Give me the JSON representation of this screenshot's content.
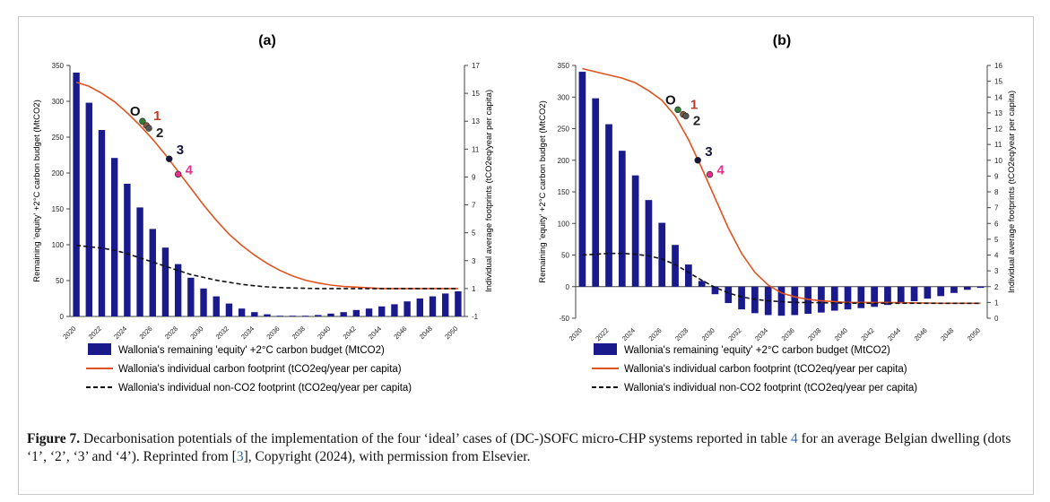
{
  "figure": {
    "caption_label": "Figure 7.",
    "caption_part1": " Decarbonisation potentials of the implementation of the four ‘ideal’ cases of (DC-)SOFC micro-CHP systems reported in table ",
    "caption_ref_table": "4",
    "caption_part2": " for an average Belgian dwelling (dots ‘1’, ‘2’, ‘3’ and ‘4’). Reprinted from [",
    "caption_ref_cite": "3",
    "caption_part3": "], Copyright (2024), with permission from Elsevier."
  },
  "colors": {
    "bar": "#1a1a8c",
    "footprint_line": "#e0531f",
    "nonco2_line": "#111111",
    "dot_O": "#2e7d32",
    "dot_1": "#8b5a3c",
    "dot_2": "#555555",
    "dot_3": "#14143c",
    "dot_4": "#e6308c",
    "label_1": "#c0392b",
    "label_2": "#222222",
    "label_3": "#14143c",
    "label_4": "#e6308c"
  },
  "chart_data": [
    {
      "type": "bar",
      "panel": "(a)",
      "title": "(a)",
      "x": [
        "2020",
        "2021",
        "2022",
        "2023",
        "2024",
        "2025",
        "2026",
        "2027",
        "2028",
        "2029",
        "2030",
        "2031",
        "2032",
        "2033",
        "2034",
        "2035",
        "2036",
        "2037",
        "2038",
        "2039",
        "2040",
        "2041",
        "2042",
        "2043",
        "2044",
        "2045",
        "2046",
        "2047",
        "2048",
        "2049",
        "2050"
      ],
      "xtick_labels": [
        "2020",
        "2022",
        "2024",
        "2026",
        "2028",
        "2030",
        "2032",
        "2034",
        "2036",
        "2038",
        "2040",
        "2042",
        "2044",
        "2046",
        "2048",
        "2050"
      ],
      "ylabel": "Remaining 'equity' +2°C carbon budget (MtCO2)",
      "ylabel2": "Individual average footprints (tCO2eq/year per capita)",
      "ylim": [
        0,
        350
      ],
      "yticks": [
        0,
        50,
        100,
        150,
        200,
        250,
        300,
        350
      ],
      "y2lim": [
        -1,
        17
      ],
      "y2ticks": [
        -1,
        1,
        3,
        5,
        7,
        9,
        11,
        13,
        15,
        17
      ],
      "series": [
        {
          "name": "Wallonia's remaining 'equity' +2°C carbon budget (MtCO2)",
          "kind": "bar",
          "axis": "left",
          "values": [
            340,
            298,
            260,
            221,
            185,
            152,
            122,
            96,
            73,
            54,
            39,
            28,
            18,
            11,
            6,
            3,
            1,
            1,
            1,
            2,
            4,
            6,
            9,
            11,
            14,
            17,
            21,
            25,
            28,
            32,
            35
          ]
        },
        {
          "name": "Wallonia's individual carbon footprint (tCO2eq/year per capita)",
          "kind": "line",
          "axis": "right",
          "values": [
            15.8,
            15.5,
            15.0,
            14.4,
            13.6,
            12.7,
            11.7,
            10.6,
            9.4,
            8.2,
            7.0,
            5.9,
            4.9,
            4.1,
            3.4,
            2.8,
            2.3,
            1.9,
            1.6,
            1.4,
            1.25,
            1.15,
            1.1,
            1.05,
            1.0,
            1.0,
            1.0,
            1.0,
            1.0,
            1.0,
            1.0
          ]
        },
        {
          "name": "Wallonia's individual non-CO2 footprint (tCO2eq/year per capita)",
          "kind": "dashed-line",
          "axis": "right",
          "values": [
            4.1,
            4.0,
            3.9,
            3.75,
            3.5,
            3.2,
            2.9,
            2.6,
            2.3,
            2.0,
            1.8,
            1.6,
            1.45,
            1.3,
            1.2,
            1.12,
            1.07,
            1.04,
            1.02,
            1.0,
            1.0,
            1.0,
            1.0,
            1.0,
            1.0,
            1.0,
            1.0,
            1.0,
            1.0,
            1.0,
            1.0
          ]
        }
      ],
      "points": [
        {
          "label": "O",
          "x": 2025.2,
          "y2": 13.0
        },
        {
          "label": "1",
          "x": 2025.5,
          "y2": 12.7
        },
        {
          "label": "2",
          "x": 2025.7,
          "y2": 12.5
        },
        {
          "label": "3",
          "x": 2027.3,
          "y2": 10.3
        },
        {
          "label": "4",
          "x": 2028.0,
          "y2": 9.2
        }
      ],
      "grid": false,
      "legend": "bottom"
    },
    {
      "type": "bar",
      "panel": "(b)",
      "title": "(b)",
      "x": [
        "2020",
        "2021",
        "2022",
        "2023",
        "2024",
        "2025",
        "2026",
        "2027",
        "2028",
        "2029",
        "2030",
        "2031",
        "2032",
        "2033",
        "2034",
        "2035",
        "2036",
        "2037",
        "2038",
        "2039",
        "2040",
        "2041",
        "2042",
        "2043",
        "2044",
        "2045",
        "2046",
        "2047",
        "2048",
        "2049",
        "2050"
      ],
      "xtick_labels": [
        "2020",
        "2022",
        "2024",
        "2026",
        "2028",
        "2030",
        "2032",
        "2034",
        "2036",
        "2038",
        "2040",
        "2042",
        "2044",
        "2046",
        "2048",
        "2050"
      ],
      "ylabel": "Remaining 'equity' +2°C carbon budget (MtCO2)",
      "ylabel2": "Individual average footprints (tCO2eq/year per capita)",
      "ylim": [
        -50,
        350
      ],
      "yticks": [
        -50,
        0,
        50,
        100,
        150,
        200,
        250,
        300,
        350
      ],
      "y2lim": [
        0,
        16
      ],
      "y2ticks": [
        0,
        1,
        2,
        3,
        4,
        5,
        6,
        7,
        8,
        9,
        10,
        11,
        12,
        13,
        14,
        15,
        16
      ],
      "series": [
        {
          "name": "Wallonia's remaining 'equity' +2°C carbon budget (MtCO2)",
          "kind": "bar",
          "axis": "left",
          "values": [
            340,
            298,
            257,
            215,
            176,
            137,
            101,
            66,
            35,
            9,
            -12,
            -26,
            -36,
            -42,
            -45,
            -46,
            -45,
            -43,
            -41,
            -38,
            -36,
            -34,
            -32,
            -29,
            -26,
            -23,
            -19,
            -15,
            -10,
            -5,
            -2
          ]
        },
        {
          "name": "Wallonia's individual carbon footprint (tCO2eq/year per capita)",
          "kind": "line",
          "axis": "right",
          "values": [
            15.8,
            15.6,
            15.4,
            15.2,
            14.9,
            14.4,
            13.8,
            12.8,
            11.3,
            9.5,
            7.6,
            5.7,
            4.1,
            2.9,
            2.1,
            1.6,
            1.35,
            1.2,
            1.1,
            1.05,
            1.0,
            1.0,
            1.0,
            1.0,
            0.98,
            0.97,
            0.96,
            0.95,
            0.95,
            0.95,
            0.95
          ]
        },
        {
          "name": "Wallonia's individual non-CO2 footprint (tCO2eq/year per capita)",
          "kind": "dashed-line",
          "axis": "right",
          "values": [
            4.0,
            4.05,
            4.1,
            4.1,
            4.05,
            3.95,
            3.75,
            3.4,
            2.9,
            2.4,
            1.95,
            1.6,
            1.35,
            1.2,
            1.1,
            1.05,
            1.0,
            1.0,
            0.98,
            0.97,
            0.96,
            0.95,
            0.95,
            0.95,
            0.95,
            0.95,
            0.95,
            0.95,
            0.95,
            0.95,
            0.95
          ]
        }
      ],
      "points": [
        {
          "label": "O",
          "x": 2027.2,
          "y2": 13.2
        },
        {
          "label": "1",
          "x": 2027.6,
          "y2": 12.9
        },
        {
          "label": "2",
          "x": 2027.8,
          "y2": 12.8
        },
        {
          "label": "3",
          "x": 2028.7,
          "y2": 10.0
        },
        {
          "label": "4",
          "x": 2029.6,
          "y2": 9.1
        }
      ],
      "grid": false,
      "legend": "bottom"
    }
  ]
}
